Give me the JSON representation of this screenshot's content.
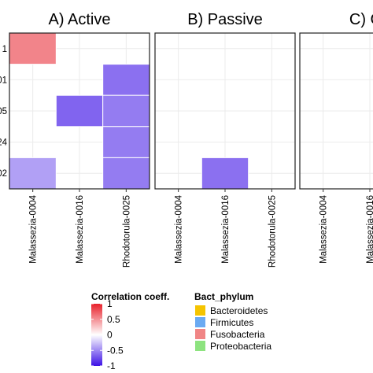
{
  "chart_data": {
    "type": "heatmap",
    "panels": [
      {
        "title": "A) Active",
        "x_categories": [
          "Malassezia-0004",
          "Malassezia-0016",
          "Rhodotorula-0025"
        ],
        "cells": [
          {
            "row": 0,
            "col": 0,
            "value": 0.55
          },
          {
            "row": 1,
            "col": 2,
            "value": -0.6
          },
          {
            "row": 2,
            "col": 1,
            "value": -0.65
          },
          {
            "row": 2,
            "col": 2,
            "value": -0.55
          },
          {
            "row": 3,
            "col": 2,
            "value": -0.55
          },
          {
            "row": 4,
            "col": 0,
            "value": -0.4
          },
          {
            "row": 4,
            "col": 2,
            "value": -0.55
          }
        ]
      },
      {
        "title": "B) Passive",
        "x_categories": [
          "Malassezia-0004",
          "Malassezia-0016",
          "Rhodotorula-0025"
        ],
        "cells": [
          {
            "row": 4,
            "col": 1,
            "value": -0.6
          }
        ]
      },
      {
        "title": "C) Co",
        "x_categories": [
          "Malassezia-0004",
          "Malassezia-0016"
        ],
        "cells": []
      }
    ],
    "y_labels": [
      "1",
      "01",
      "05",
      "24",
      "02"
    ],
    "colorbar": {
      "title": "Correlation coeff.",
      "ticks": [
        "1",
        "0.5",
        "0",
        "-0.5",
        "-1"
      ],
      "range": [
        -1,
        1
      ],
      "colors": {
        "low": "#3d11e6",
        "mid": "#ffffff",
        "high": "#e8202a"
      }
    },
    "legend": {
      "title": "Bact_phylum",
      "items": [
        {
          "label": "Bacteroidetes",
          "color": "#f5c400"
        },
        {
          "label": "Firmicutes",
          "color": "#6aaaf2"
        },
        {
          "label": "Fusobacteria",
          "color": "#f08585"
        },
        {
          "label": "Proteobacteria",
          "color": "#8de37f"
        }
      ]
    }
  }
}
